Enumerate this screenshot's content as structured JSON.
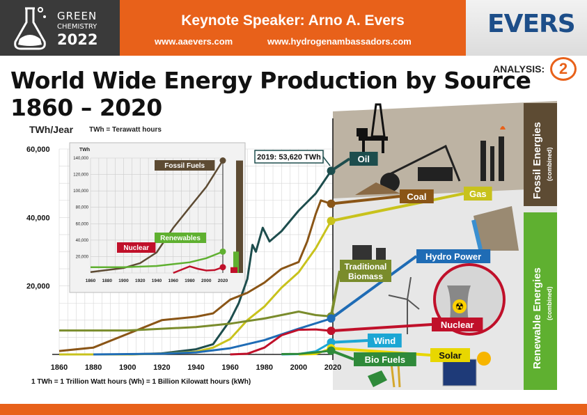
{
  "header": {
    "brand_line1": "GREEN",
    "brand_line2": "CHEMISTRY",
    "brand_year": "2022",
    "speaker": "Keynote Speaker: Arno A. Evers",
    "url1": "www.aaevers.com",
    "url2": "www.hydrogenambassadors.com",
    "logo": "EVERS"
  },
  "analysis": {
    "label": "ANALYSIS:",
    "number": "2"
  },
  "title_line1": "World Wide Energy Production by Source",
  "title_line2": "1860 – 2020",
  "y_unit": "TWh/Jear",
  "unit_note": "TWh = Terawatt hours",
  "footnote": "1 TWh = 1 Trillion Watt hours (Wh) = 1 Billion Kilowatt hours (kWh)",
  "callout": "2019: 53,620 TWh",
  "side_labels": {
    "fossil": "Fossil Energies",
    "fossil_sub": "(combined)",
    "renewable": "Renewable Energies",
    "renewable_sub": "(combined)"
  },
  "colors": {
    "orange": "#e8611a",
    "oil": "#1d4d4d",
    "coal": "#8a5516",
    "gas": "#c8c21c",
    "hydro": "#1f6cb5",
    "nuclear": "#c0102a",
    "wind": "#1ca6d4",
    "solar": "#e8d700",
    "biofuel": "#2f8a3a",
    "biomass": "#7a8c2c",
    "fossil_panel": "#5d4b33",
    "renewable_panel": "#5fb030"
  },
  "chart_data": [
    {
      "type": "line",
      "title": "World Wide Energy Production by Source",
      "ylabel": "TWh/Jear",
      "xlim": [
        1860,
        2020
      ],
      "ylim": [
        0,
        60000
      ],
      "x_ticks": [
        "1860",
        "1880",
        "1900",
        "1920",
        "1940",
        "1960",
        "1980",
        "2000",
        "2020"
      ],
      "y_ticks": [
        "20,000",
        "40,000",
        "60,000"
      ],
      "annotation": "2019: 53,620 TWh",
      "series": [
        {
          "name": "Oil",
          "color": "#1d4d4d",
          "x": [
            1860,
            1900,
            1920,
            1940,
            1950,
            1960,
            1965,
            1970,
            1973,
            1975,
            1979,
            1983,
            1990,
            2000,
            2010,
            2019
          ],
          "y": [
            0,
            0,
            300,
            1500,
            3000,
            10000,
            15000,
            22000,
            32000,
            30000,
            37000,
            33000,
            36000,
            42000,
            47000,
            53620
          ]
        },
        {
          "name": "Coal",
          "color": "#8a5516",
          "x": [
            1860,
            1880,
            1900,
            1920,
            1940,
            1950,
            1960,
            1970,
            1980,
            1990,
            2000,
            2005,
            2010,
            2013,
            2019
          ],
          "y": [
            1000,
            2000,
            6000,
            10000,
            11000,
            12000,
            16000,
            18000,
            21000,
            25000,
            27000,
            33000,
            41000,
            45000,
            44000
          ]
        },
        {
          "name": "Gas",
          "color": "#c8c21c",
          "x": [
            1860,
            1900,
            1920,
            1940,
            1950,
            1960,
            1970,
            1980,
            1990,
            2000,
            2010,
            2019
          ],
          "y": [
            0,
            0,
            200,
            800,
            2000,
            4500,
            10000,
            14000,
            19500,
            24000,
            31000,
            39000
          ]
        },
        {
          "name": "Traditional Biomass",
          "color": "#7a8c2c",
          "x": [
            1860,
            1900,
            1940,
            1960,
            1980,
            2000,
            2010,
            2019
          ],
          "y": [
            7000,
            7000,
            8000,
            9000,
            10500,
            12500,
            11500,
            11100
          ]
        },
        {
          "name": "Hydro Power",
          "color": "#1f6cb5",
          "x": [
            1880,
            1920,
            1940,
            1960,
            1980,
            2000,
            2019
          ],
          "y": [
            0,
            200,
            600,
            1800,
            4200,
            7500,
            10500
          ]
        },
        {
          "name": "Nuclear",
          "color": "#c0102a",
          "x": [
            1960,
            1970,
            1980,
            1990,
            2000,
            2010,
            2019
          ],
          "y": [
            0,
            200,
            2000,
            5600,
            7200,
            7300,
            6900
          ]
        },
        {
          "name": "Wind",
          "color": "#1ca6d4",
          "x": [
            1990,
            2000,
            2010,
            2019
          ],
          "y": [
            0,
            100,
            900,
            3500
          ]
        },
        {
          "name": "Solar",
          "color": "#e8d700",
          "x": [
            2000,
            2010,
            2019
          ],
          "y": [
            0,
            100,
            1800
          ]
        },
        {
          "name": "Bio Fuels",
          "color": "#2f8a3a",
          "x": [
            1990,
            2000,
            2010,
            2019
          ],
          "y": [
            100,
            150,
            600,
            1100
          ]
        }
      ]
    },
    {
      "type": "line",
      "ylabel": "TWh",
      "xlim": [
        1860,
        2020
      ],
      "ylim": [
        0,
        140000
      ],
      "x_ticks": [
        "1860",
        "1880",
        "1900",
        "1920",
        "1940",
        "1960",
        "1980",
        "2000",
        "2020"
      ],
      "y_ticks": [
        "20,000",
        "40,000",
        "60,000",
        "80,000",
        "100,000",
        "120,000",
        "140,000"
      ],
      "series": [
        {
          "name": "Fossil Fuels",
          "color": "#5d4b33",
          "x": [
            1860,
            1900,
            1920,
            1940,
            1960,
            1980,
            2000,
            2020
          ],
          "y": [
            1000,
            6000,
            12000,
            25000,
            55000,
            80000,
            105000,
            137000
          ]
        },
        {
          "name": "Renewables",
          "color": "#5fb030",
          "x": [
            1860,
            1900,
            1940,
            1980,
            2000,
            2020
          ],
          "y": [
            7000,
            7000,
            8500,
            13000,
            18000,
            26000
          ]
        },
        {
          "name": "Nuclear",
          "color": "#c0102a",
          "x": [
            1960,
            1980,
            1990,
            2000,
            2010,
            2020
          ],
          "y": [
            0,
            8000,
            5000,
            3000,
            3500,
            7000
          ]
        }
      ]
    }
  ],
  "source_labels": [
    "Oil",
    "Coal",
    "Gas",
    "Hydro Power",
    "Traditional Biomass",
    "Nuclear",
    "Wind",
    "Solar",
    "Bio Fuels"
  ]
}
